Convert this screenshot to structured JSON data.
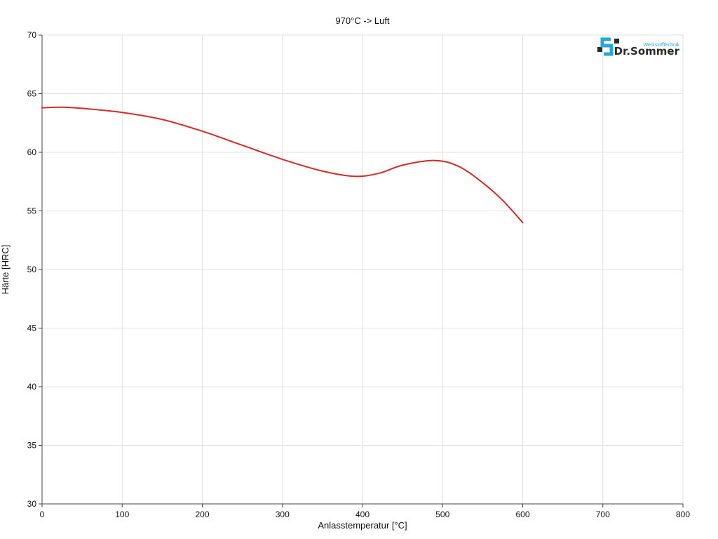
{
  "chart_data": {
    "type": "line",
    "title": "970°C -> Luft",
    "xlabel": "Anlasstemperatur [°C]",
    "ylabel": "Härte [HRC]",
    "xlim": [
      0,
      800
    ],
    "ylim": [
      30,
      70
    ],
    "xticks": [
      0,
      100,
      200,
      300,
      400,
      500,
      600,
      700,
      800
    ],
    "yticks": [
      30,
      35,
      40,
      45,
      50,
      55,
      60,
      65,
      70
    ],
    "grid": true,
    "legend": "none",
    "series": [
      {
        "color": "#d42a2a",
        "x": [
          0,
          25,
          50,
          100,
          150,
          200,
          250,
          300,
          350,
          390,
          420,
          450,
          490,
          520,
          550,
          575,
          600
        ],
        "y": [
          63.8,
          63.85,
          63.75,
          63.4,
          62.8,
          61.8,
          60.6,
          59.4,
          58.4,
          57.95,
          58.2,
          58.9,
          59.3,
          58.8,
          57.4,
          55.9,
          54.0
        ]
      }
    ]
  },
  "logo": {
    "name": "Dr.Sommer",
    "sub": "Werkstofftechnik",
    "accent": "#2aa6d6",
    "dark": "#2b2b2b"
  }
}
